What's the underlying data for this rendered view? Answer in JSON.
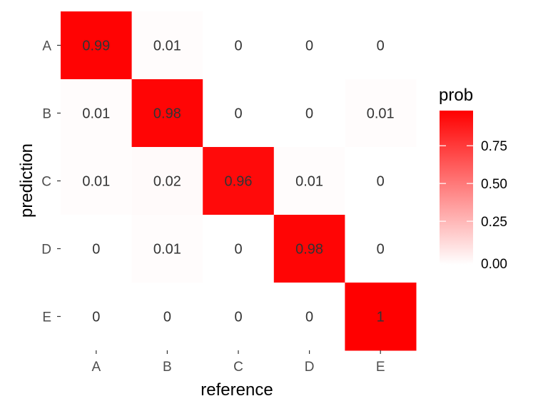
{
  "chart_data": {
    "type": "heatmap",
    "xlabel": "reference",
    "ylabel": "prediction",
    "x_categories": [
      "A",
      "B",
      "C",
      "D",
      "E"
    ],
    "y_categories": [
      "A",
      "B",
      "C",
      "D",
      "E"
    ],
    "cells": [
      {
        "x": "A",
        "y": "A",
        "value": 0.99,
        "label": "0.99"
      },
      {
        "x": "B",
        "y": "A",
        "value": 0.01,
        "label": "0.01"
      },
      {
        "x": "C",
        "y": "A",
        "value": 0,
        "label": "0"
      },
      {
        "x": "D",
        "y": "A",
        "value": 0,
        "label": "0"
      },
      {
        "x": "E",
        "y": "A",
        "value": 0,
        "label": "0"
      },
      {
        "x": "A",
        "y": "B",
        "value": 0.01,
        "label": "0.01"
      },
      {
        "x": "B",
        "y": "B",
        "value": 0.98,
        "label": "0.98"
      },
      {
        "x": "C",
        "y": "B",
        "value": 0,
        "label": "0"
      },
      {
        "x": "D",
        "y": "B",
        "value": 0,
        "label": "0"
      },
      {
        "x": "E",
        "y": "B",
        "value": 0.01,
        "label": "0.01"
      },
      {
        "x": "A",
        "y": "C",
        "value": 0.01,
        "label": "0.01"
      },
      {
        "x": "B",
        "y": "C",
        "value": 0.02,
        "label": "0.02"
      },
      {
        "x": "C",
        "y": "C",
        "value": 0.96,
        "label": "0.96"
      },
      {
        "x": "D",
        "y": "C",
        "value": 0.01,
        "label": "0.01"
      },
      {
        "x": "E",
        "y": "C",
        "value": 0,
        "label": "0"
      },
      {
        "x": "A",
        "y": "D",
        "value": 0,
        "label": "0"
      },
      {
        "x": "B",
        "y": "D",
        "value": 0.01,
        "label": "0.01"
      },
      {
        "x": "C",
        "y": "D",
        "value": 0,
        "label": "0"
      },
      {
        "x": "D",
        "y": "D",
        "value": 0.98,
        "label": "0.98"
      },
      {
        "x": "E",
        "y": "D",
        "value": 0,
        "label": "0"
      },
      {
        "x": "A",
        "y": "E",
        "value": 0,
        "label": "0"
      },
      {
        "x": "B",
        "y": "E",
        "value": 0,
        "label": "0"
      },
      {
        "x": "C",
        "y": "E",
        "value": 0,
        "label": "0"
      },
      {
        "x": "D",
        "y": "E",
        "value": 0,
        "label": "0"
      },
      {
        "x": "E",
        "y": "E",
        "value": 1,
        "label": "1"
      }
    ],
    "legend": {
      "title": "prob",
      "placement": "right",
      "low_color": "#ffffff",
      "high_color": "#ff0000",
      "range": [
        0,
        1
      ],
      "ticks": [
        {
          "value": 0.75,
          "label": "0.75"
        },
        {
          "value": 0.5,
          "label": "0.50"
        },
        {
          "value": 0.25,
          "label": "0.25"
        },
        {
          "value": 0,
          "label": "0.00"
        }
      ]
    },
    "grid": false
  }
}
